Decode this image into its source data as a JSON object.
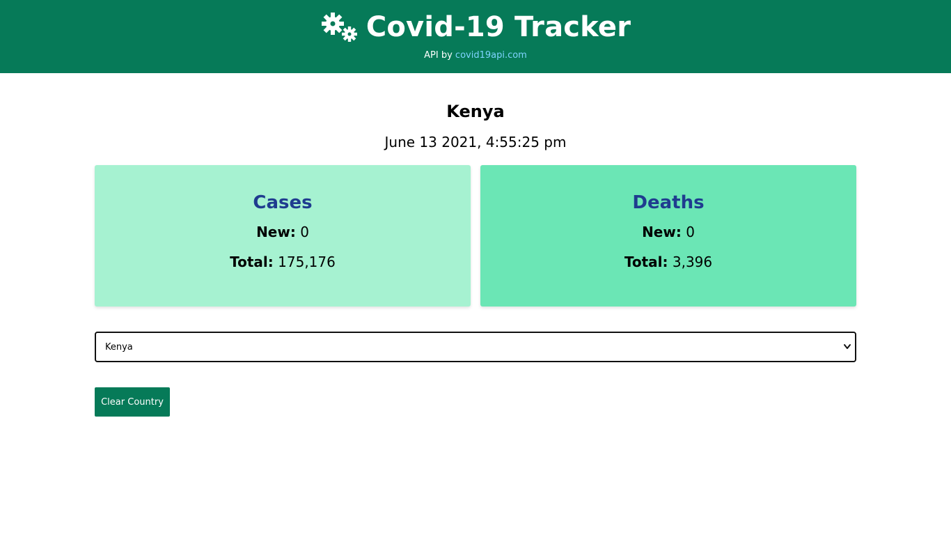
{
  "header": {
    "title": "Covid-19 Tracker",
    "api_prefix": "API by",
    "api_link": "covid19api.com",
    "icon": "gears-icon"
  },
  "country": {
    "name": "Kenya",
    "date": "June 13 2021, 4:55:25 pm"
  },
  "cases": {
    "title": "Cases",
    "new_label": "New:",
    "new_value": "0",
    "total_label": "Total:",
    "total_value": "175,176"
  },
  "deaths": {
    "title": "Deaths",
    "new_label": "New:",
    "new_value": "0",
    "total_label": "Total:",
    "total_value": "3,396"
  },
  "select": {
    "value": "Kenya"
  },
  "clear_button": {
    "label": "Clear Country"
  },
  "colors": {
    "header_bg": "#067a58",
    "cases_card_bg": "#a6f2d1",
    "deaths_card_bg": "#6be6b5",
    "card_title": "#1f3c8f",
    "link": "#7fd4ff"
  }
}
